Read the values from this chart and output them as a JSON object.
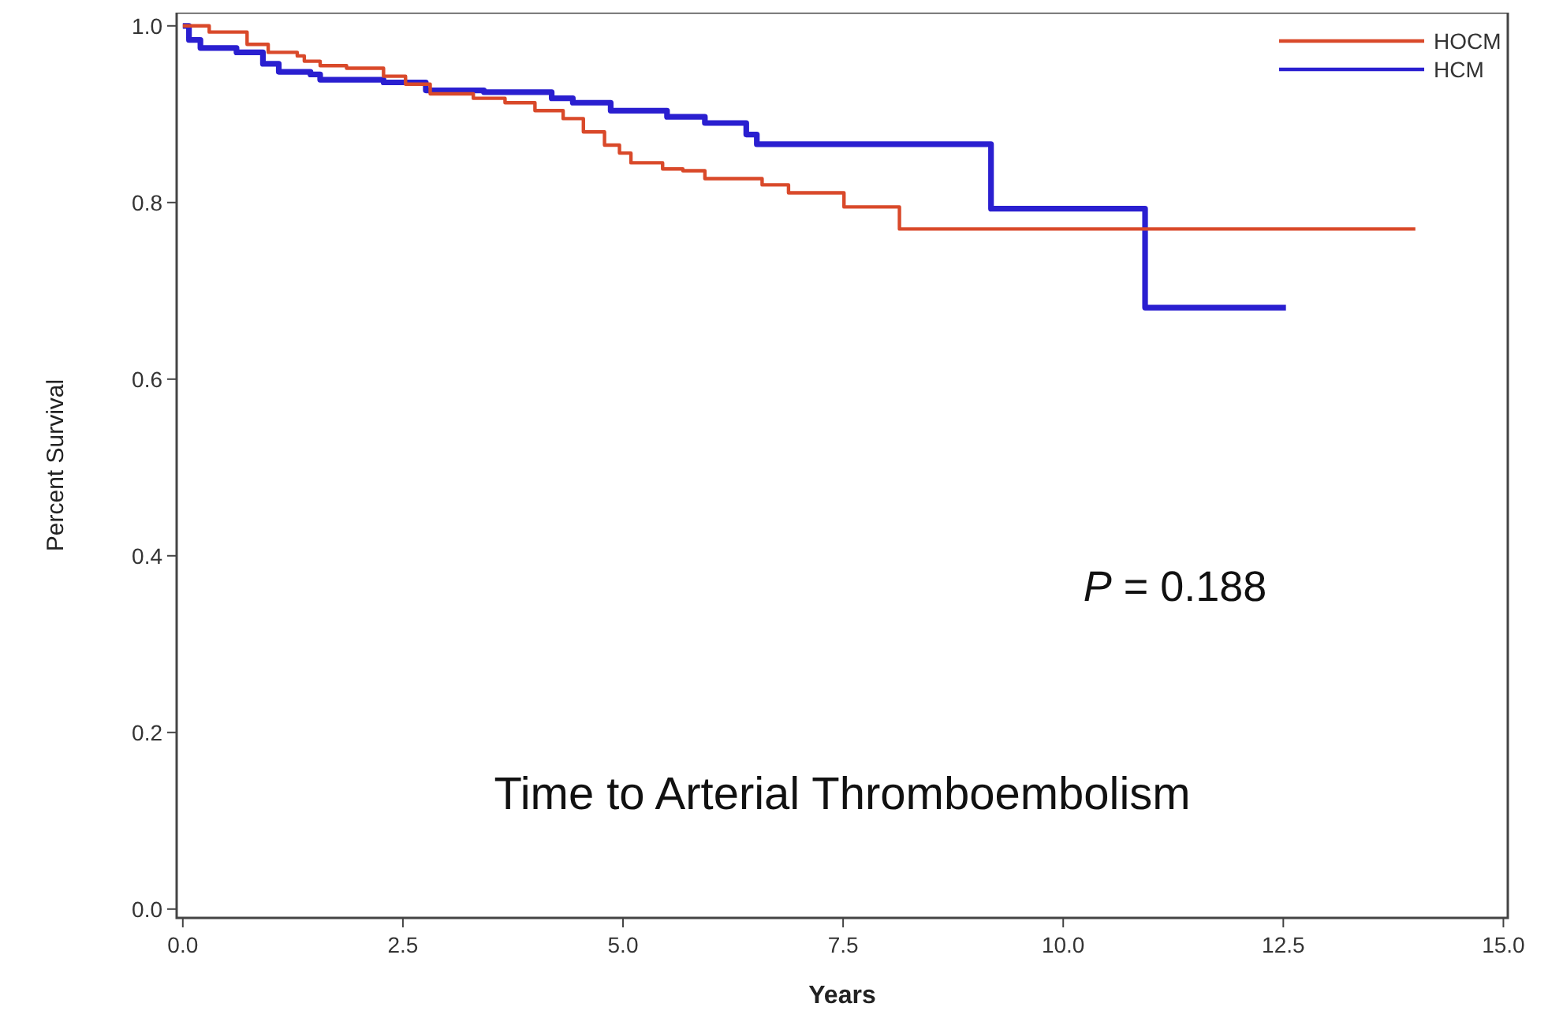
{
  "chart_data": {
    "type": "step",
    "xlabel": "Years",
    "ylabel": "Percent Survival",
    "annotations": [
      "P = 0.188",
      "Time to Arterial Thromboembolism"
    ],
    "xlim": [
      -0.07,
      15.05
    ],
    "ylim": [
      -0.01,
      1.015
    ],
    "xticks": [
      {
        "value": 0,
        "label": "0.0"
      },
      {
        "value": 2.5,
        "label": "2.5"
      },
      {
        "value": 5,
        "label": "5.0"
      },
      {
        "value": 7.5,
        "label": "7.5"
      },
      {
        "value": 10,
        "label": "10.0"
      },
      {
        "value": 12.5,
        "label": "12.5"
      },
      {
        "value": 15,
        "label": "15.0"
      }
    ],
    "yticks": [
      {
        "value": 0,
        "label": "0.0"
      },
      {
        "value": 0.2,
        "label": "0.2"
      },
      {
        "value": 0.4,
        "label": "0.4"
      },
      {
        "value": 0.6,
        "label": "0.6"
      },
      {
        "value": 0.8,
        "label": "0.8"
      },
      {
        "value": 1,
        "label": "1.0"
      }
    ],
    "grid": false,
    "legend": "top right",
    "line_style": "solid",
    "marker": "none",
    "series": [
      {
        "name": "HOCM",
        "color": "#d9492a",
        "x": [
          0,
          0.3,
          0.73,
          0.97,
          1.3,
          1.38,
          1.56,
          1.86,
          2.28,
          2.53,
          2.81,
          3.3,
          3.66,
          4.0,
          4.32,
          4.55,
          4.79,
          4.96,
          5.09,
          5.45,
          5.68,
          5.93,
          6.58,
          6.88,
          7.51,
          8.14,
          14.0
        ],
        "values": [
          1.0,
          0.993,
          0.979,
          0.97,
          0.966,
          0.96,
          0.955,
          0.952,
          0.943,
          0.934,
          0.923,
          0.918,
          0.913,
          0.904,
          0.895,
          0.88,
          0.865,
          0.856,
          0.845,
          0.838,
          0.836,
          0.827,
          0.82,
          0.811,
          0.795,
          0.77,
          0.77
        ]
      },
      {
        "name": "HCM",
        "color": "#2a1fd0",
        "x": [
          0,
          0.07,
          0.2,
          0.61,
          0.91,
          1.09,
          1.45,
          1.56,
          2.28,
          2.76,
          3.42,
          4.19,
          4.43,
          4.86,
          5.5,
          5.93,
          6.4,
          6.52,
          9.18,
          10.93,
          12.53
        ],
        "values": [
          1.0,
          0.984,
          0.975,
          0.97,
          0.957,
          0.948,
          0.945,
          0.939,
          0.936,
          0.927,
          0.925,
          0.918,
          0.913,
          0.904,
          0.897,
          0.89,
          0.877,
          0.866,
          0.793,
          0.681,
          0.681
        ]
      }
    ]
  }
}
